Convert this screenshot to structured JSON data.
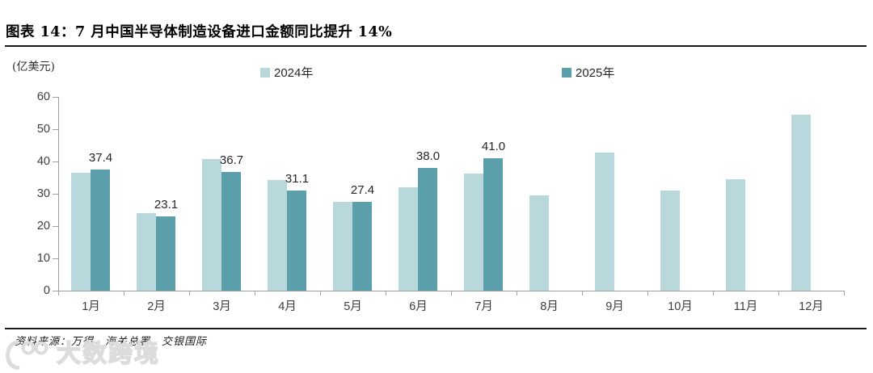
{
  "header": {
    "title": "图表 14：7 月中国半导体制造设备进口金额同比提升 14%",
    "unit_label": "(亿美元)"
  },
  "legend": {
    "items": [
      {
        "label": "2024年",
        "color": "#b9d8dc"
      },
      {
        "label": "2025年",
        "color": "#5b9fab"
      }
    ]
  },
  "footer": {
    "source_note": "资料来源：万得，海关总署，交银国际",
    "watermark_text": "大数跨境"
  },
  "colors": {
    "series_2024": "#b9d8dc",
    "series_2025": "#5b9fab",
    "axis": "#a0a0a0",
    "tick_text": "#3d3d3d",
    "watermark": "#dcdcdc"
  },
  "chart_data": {
    "type": "bar",
    "title": "7 月中国半导体制造设备进口金额同比提升 14%",
    "categories": [
      "1月",
      "2月",
      "3月",
      "4月",
      "5月",
      "6月",
      "7月",
      "8月",
      "9月",
      "10月",
      "11月",
      "12月"
    ],
    "series": [
      {
        "name": "2024年",
        "color": "#b9d8dc",
        "values": [
          36.5,
          24.1,
          40.8,
          34.3,
          27.6,
          32.1,
          36.2,
          29.6,
          42.7,
          30.9,
          34.4,
          54.4
        ]
      },
      {
        "name": "2025年",
        "color": "#5b9fab",
        "values": [
          37.4,
          23.1,
          36.7,
          31.1,
          27.4,
          38.0,
          41.0,
          null,
          null,
          null,
          null,
          null
        ]
      }
    ],
    "data_labels_series": "2025年",
    "data_labels": [
      "37.4",
      "23.1",
      "36.7",
      "31.1",
      "27.4",
      "38.0",
      "41.0"
    ],
    "xlabel": "",
    "ylabel": "(亿美元)",
    "ylim": [
      0,
      60
    ],
    "yticks": [
      0,
      10,
      20,
      30,
      40,
      50,
      60
    ],
    "legend_position": "top",
    "grid": false
  }
}
